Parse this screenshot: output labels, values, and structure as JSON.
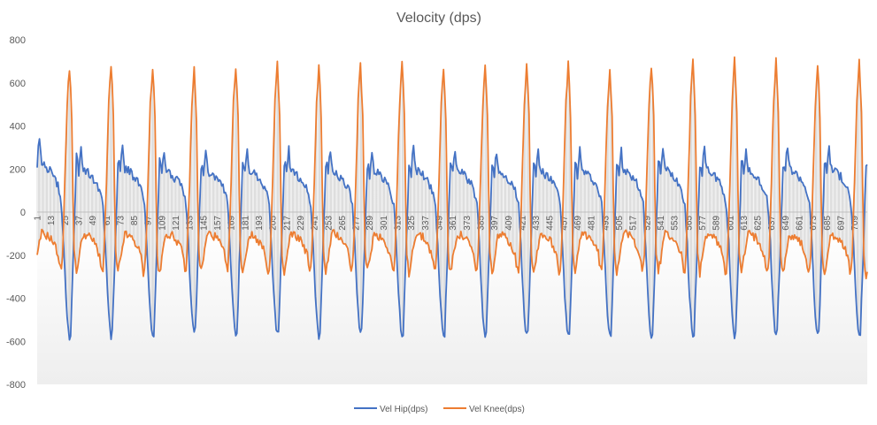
{
  "chart_data": {
    "type": "line",
    "title": "Velocity (dps)",
    "xlabel": "",
    "ylabel": "",
    "ylim": [
      -800,
      800
    ],
    "yticks": [
      800,
      600,
      400,
      200,
      0,
      -200,
      -400,
      -600,
      -800
    ],
    "x_start": 1,
    "x_end": 720,
    "x_tick_labels": [
      1,
      13,
      25,
      37,
      49,
      61,
      73,
      85,
      97,
      109,
      121,
      133,
      145,
      157,
      169,
      181,
      193,
      205,
      217,
      229,
      241,
      253,
      265,
      277,
      289,
      301,
      313,
      325,
      337,
      349,
      361,
      373,
      385,
      397,
      409,
      421,
      433,
      445,
      457,
      469,
      481,
      493,
      505,
      517,
      529,
      541,
      553,
      565,
      577,
      589,
      601,
      613,
      625,
      637,
      649,
      661,
      673,
      685,
      697,
      709
    ],
    "grid": false,
    "legend_position": "bottom",
    "cycle_count": 20,
    "series": [
      {
        "name": "Vel Hip(dps)",
        "color": "#4472C4",
        "cycle_start_x": [
          1,
          37,
          73,
          109,
          145,
          181,
          217,
          253,
          289,
          325,
          361,
          397,
          433,
          469,
          505,
          541,
          577,
          613,
          649,
          685
        ],
        "cycle_peak": [
          360,
          310,
          320,
          300,
          300,
          310,
          300,
          300,
          300,
          310,
          310,
          300,
          300,
          300,
          300,
          310,
          310,
          300,
          320,
          320
        ],
        "cycle_trough": [
          -600,
          -590,
          -590,
          -580,
          -590,
          -590,
          -590,
          -590,
          -590,
          -590,
          -590,
          -590,
          -600,
          -590,
          -590,
          -590,
          -590,
          -590,
          -590,
          -590
        ],
        "cycle_shape": [
          [
            0,
            170
          ],
          [
            0.05,
            300
          ],
          [
            0.1,
            190
          ],
          [
            0.2,
            180
          ],
          [
            0.3,
            160
          ],
          [
            0.4,
            140
          ],
          [
            0.5,
            100
          ],
          [
            0.58,
            40
          ],
          [
            0.64,
            -150
          ],
          [
            0.7,
            -420
          ],
          [
            0.76,
            -560
          ],
          [
            0.8,
            -590
          ],
          [
            0.84,
            -380
          ],
          [
            0.9,
            -40
          ],
          [
            0.95,
            250
          ],
          [
            1,
            170
          ]
        ]
      },
      {
        "name": "Vel Knee(dps)",
        "color": "#ED7D31",
        "cycle_start_x": [
          1,
          37,
          73,
          109,
          145,
          181,
          217,
          253,
          289,
          325,
          361,
          397,
          433,
          469,
          505,
          541,
          577,
          613,
          649,
          685
        ],
        "cycle_peak": [
          680,
          690,
          680,
          670,
          690,
          690,
          690,
          690,
          700,
          680,
          690,
          700,
          690,
          680,
          690,
          710,
          710,
          710,
          690,
          710
        ],
        "cycle_trough": [
          -280,
          -290,
          -300,
          -280,
          -280,
          -300,
          -290,
          -280,
          -290,
          -290,
          -290,
          -290,
          -290,
          -280,
          -280,
          -290,
          -290,
          -290,
          -300,
          -300
        ],
        "cycle_shape": [
          [
            0,
            -220
          ],
          [
            0.1,
            -100
          ],
          [
            0.2,
            -110
          ],
          [
            0.3,
            -120
          ],
          [
            0.4,
            -150
          ],
          [
            0.5,
            -200
          ],
          [
            0.56,
            -280
          ],
          [
            0.6,
            -260
          ],
          [
            0.66,
            100
          ],
          [
            0.72,
            500
          ],
          [
            0.78,
            690
          ],
          [
            0.84,
            420
          ],
          [
            0.88,
            -180
          ],
          [
            0.94,
            -290
          ],
          [
            1,
            -220
          ]
        ]
      }
    ]
  }
}
